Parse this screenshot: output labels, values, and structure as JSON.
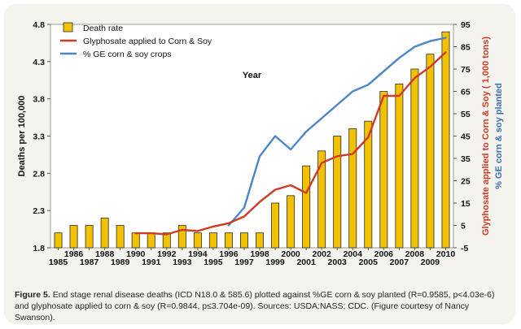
{
  "caption": {
    "label": "Figure 5.",
    "text": "End stage renal disease deaths (ICD N18.0 & 585.6) plotted against %GE corn & soy planted (R=0.9585, p<4.03e-6) and glyphosate applied to corn & soy (R=0.9844, p≤3.704e-09). Sources: USDA:NASS; CDC. (Figure courtesy of Nancy Swanson)."
  },
  "colors": {
    "bar_fill": "#f2c200",
    "bar_stroke": "#2b2b2b",
    "glyphosate_line": "#cf3a24",
    "ge_line": "#4a86c8",
    "right_axis_title_red": "#cf3a24",
    "right_axis_title_blue": "#3a6fb0"
  },
  "chart_data": {
    "type": "bar",
    "title": "",
    "xlabel": "Year",
    "ylabel": "Deaths per 100,000",
    "ylabel_right_1": "Glyphosate applied to Corn & Soy ( 1,000 tons)",
    "ylabel_right_2": "% GE corn & soy planted",
    "ylim": [
      1.8,
      4.8
    ],
    "ylim_right": [
      -5,
      95
    ],
    "yticks_left": [
      "1.8",
      "2.3",
      "2.8",
      "3.3",
      "3.8",
      "4.3",
      "4.8"
    ],
    "yticks_right": [
      "-5",
      "5",
      "15",
      "25",
      "35",
      "45",
      "55",
      "65",
      "75",
      "85",
      "95"
    ],
    "categories": [
      "1985",
      "1986",
      "1987",
      "1988",
      "1989",
      "1990",
      "1991",
      "1992",
      "1993",
      "1994",
      "1995",
      "1996",
      "1997",
      "1998",
      "1999",
      "2000",
      "2001",
      "2002",
      "2003",
      "2004",
      "2005",
      "2006",
      "2007",
      "2008",
      "2009",
      "2010"
    ],
    "legend_position": "top-left",
    "series": [
      {
        "name": "Death rate",
        "kind": "bar",
        "axis": "left",
        "values": [
          2.0,
          2.1,
          2.1,
          2.2,
          2.1,
          2.0,
          2.0,
          2.0,
          2.1,
          2.0,
          2.0,
          2.0,
          2.0,
          2.0,
          2.4,
          2.5,
          2.9,
          3.1,
          3.3,
          3.4,
          3.5,
          3.9,
          4.0,
          4.2,
          4.4,
          4.7
        ]
      },
      {
        "name": "Glyphosate applied to Corn & Soy",
        "kind": "line",
        "axis": "right",
        "x": [
          "1990",
          "1991",
          "1992",
          "1993",
          "1994",
          "1995",
          "1996",
          "1997",
          "1998",
          "1999",
          "2000",
          "2001",
          "2002",
          "2003",
          "2004",
          "2005",
          "2006",
          "2007",
          "2008",
          "2009",
          "2010"
        ],
        "values": [
          1.5,
          1.5,
          1.0,
          3.0,
          2.5,
          4.5,
          6.0,
          9.0,
          15.5,
          21.0,
          23.0,
          19.5,
          33.0,
          36.0,
          37.0,
          44.5,
          63.0,
          63.0,
          71.0,
          76.0,
          82.5
        ]
      },
      {
        "name": "% GE corn & soy crops",
        "kind": "line",
        "axis": "right",
        "x": [
          "1996",
          "1997",
          "1998",
          "1999",
          "2000",
          "2001",
          "2002",
          "2003",
          "2004",
          "2005",
          "2006",
          "2007",
          "2008",
          "2009",
          "2010"
        ],
        "values": [
          5.0,
          13.0,
          36.0,
          45.0,
          39.0,
          47.0,
          53.0,
          59.0,
          65.0,
          68.0,
          74.0,
          80.0,
          85.0,
          87.5,
          89.0
        ]
      }
    ]
  }
}
